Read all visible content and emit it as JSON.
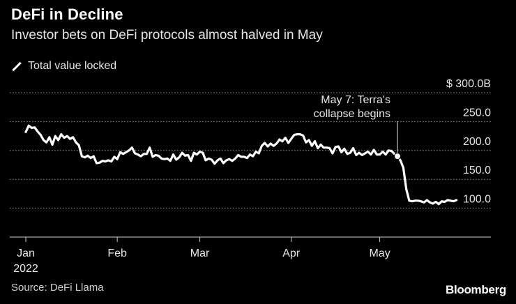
{
  "header": {
    "title": "DeFi in Decline",
    "subtitle": "Investor bets on DeFi protocols almost halved in May"
  },
  "legend": {
    "label": "Total value locked"
  },
  "footer": {
    "source": "Source: DeFi Llama",
    "brand": "Bloomberg"
  },
  "chart_data": {
    "type": "line",
    "title": "DeFi in Decline",
    "subtitle": "Investor bets on DeFi protocols almost halved in May",
    "xlabel": "",
    "ylabel": "",
    "ylim": [
      50,
      300
    ],
    "y_ticks": [
      {
        "value": 300,
        "label": "$ 300.0B"
      },
      {
        "value": 250,
        "label": "250.0"
      },
      {
        "value": 200,
        "label": "200.0"
      },
      {
        "value": 150,
        "label": "150.0"
      },
      {
        "value": 100,
        "label": "100.0"
      }
    ],
    "x_ticks": [
      {
        "day": 0,
        "label": "Jan",
        "sublabel": "2022"
      },
      {
        "day": 31,
        "label": "Feb",
        "sublabel": ""
      },
      {
        "day": 59,
        "label": "Mar",
        "sublabel": ""
      },
      {
        "day": 90,
        "label": "Apr",
        "sublabel": ""
      },
      {
        "day": 120,
        "label": "May",
        "sublabel": ""
      }
    ],
    "grid": true,
    "legend_position": "top-left",
    "annotation": {
      "day": 126,
      "value": 190,
      "text_lines": [
        "May 7: Terra's",
        "collapse begins"
      ]
    },
    "series": [
      {
        "name": "Total value locked",
        "color": "#ffffff",
        "x": [
          0,
          1,
          2,
          3,
          4,
          5,
          6,
          7,
          8,
          9,
          10,
          11,
          12,
          13,
          14,
          15,
          16,
          17,
          18,
          19,
          20,
          21,
          22,
          23,
          24,
          25,
          26,
          27,
          28,
          29,
          30,
          31,
          32,
          33,
          34,
          35,
          36,
          37,
          38,
          39,
          40,
          41,
          42,
          43,
          44,
          45,
          46,
          47,
          48,
          49,
          50,
          51,
          52,
          53,
          54,
          55,
          56,
          57,
          58,
          59,
          60,
          61,
          62,
          63,
          64,
          65,
          66,
          67,
          68,
          69,
          70,
          71,
          72,
          73,
          74,
          75,
          76,
          77,
          78,
          79,
          80,
          81,
          82,
          83,
          84,
          85,
          86,
          87,
          88,
          89,
          90,
          91,
          92,
          93,
          94,
          95,
          96,
          97,
          98,
          99,
          100,
          101,
          102,
          103,
          104,
          105,
          106,
          107,
          108,
          109,
          110,
          111,
          112,
          113,
          114,
          115,
          116,
          117,
          118,
          119,
          120,
          121,
          122,
          123,
          124,
          125,
          126,
          127,
          128,
          129,
          130,
          131,
          132,
          133,
          134,
          135,
          136,
          137,
          138,
          139,
          140,
          141,
          142,
          143,
          144,
          145,
          146
        ],
        "values": [
          232,
          243,
          239,
          240,
          233,
          227,
          218,
          214,
          223,
          210,
          225,
          218,
          228,
          222,
          225,
          220,
          223,
          214,
          209,
          190,
          188,
          191,
          187,
          190,
          178,
          179,
          182,
          181,
          183,
          181,
          189,
          185,
          197,
          194,
          197,
          200,
          205,
          195,
          193,
          190,
          194,
          194,
          205,
          189,
          192,
          191,
          186,
          185,
          186,
          182,
          193,
          184,
          188,
          196,
          191,
          192,
          182,
          196,
          193,
          198,
          196,
          183,
          186,
          184,
          177,
          183,
          186,
          178,
          183,
          185,
          182,
          186,
          192,
          189,
          189,
          187,
          193,
          190,
          198,
          195,
          208,
          213,
          207,
          212,
          208,
          212,
          219,
          216,
          222,
          213,
          220,
          227,
          228,
          228,
          226,
          214,
          218,
          208,
          216,
          204,
          210,
          205,
          205,
          204,
          195,
          206,
          207,
          197,
          203,
          194,
          196,
          204,
          192,
          196,
          192,
          195,
          198,
          193,
          201,
          193,
          193,
          198,
          193,
          200,
          199,
          194,
          190,
          183,
          170,
          133,
          113,
          112,
          113,
          113,
          112,
          110,
          114,
          110,
          108,
          111,
          107,
          112,
          111,
          114,
          113,
          112,
          114
        ]
      }
    ]
  }
}
